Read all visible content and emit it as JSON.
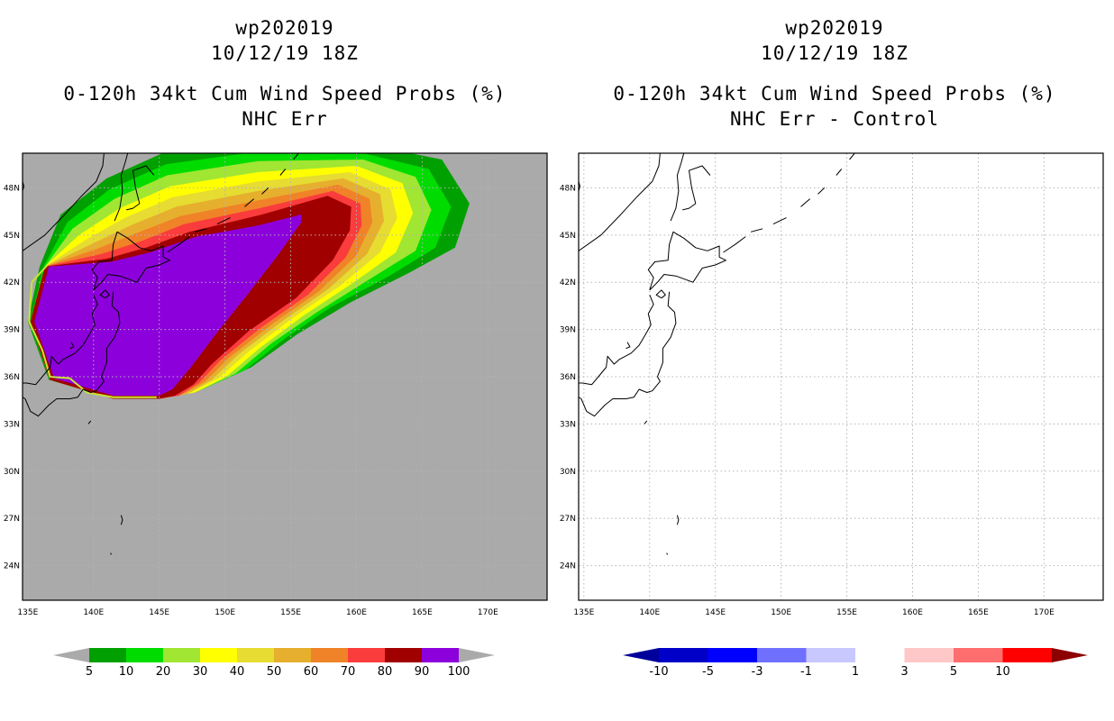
{
  "left": {
    "title1": "wp202019",
    "title2": "10/12/19 18Z",
    "title3": "0-120h 34kt Cum Wind Speed Probs (%)",
    "title4": "NHC Err",
    "background_color": "#aaaaaa",
    "colorbar": {
      "labels": [
        "5",
        "10",
        "20",
        "30",
        "40",
        "50",
        "60",
        "70",
        "80",
        "90",
        "100"
      ],
      "colors": [
        "#00a000",
        "#00dc00",
        "#a0e632",
        "#ffff00",
        "#e6dc32",
        "#e6af2d",
        "#f08228",
        "#fa3c3c",
        "#a00000",
        "#8c00dc"
      ],
      "under_color": "#aaaaaa",
      "over_color": "#aaaaaa"
    }
  },
  "right": {
    "title1": "wp202019",
    "title2": "10/12/19 18Z",
    "title3": "0-120h 34kt Cum Wind Speed Probs (%)",
    "title4": "NHC Err - Control",
    "background_color": "#ffffff",
    "colorbar": {
      "labels": [
        "-10",
        "-5",
        "-3",
        "-1",
        "1",
        "3",
        "5",
        "10"
      ],
      "colors": [
        "#0000c8",
        "#0000ff",
        "#7070ff",
        "#c8c8ff",
        "#ffffff",
        "#ffc8c8",
        "#ff6e6e",
        "#ff0000"
      ],
      "under_color": "#00009a",
      "over_color": "#8c0000"
    }
  },
  "axes": {
    "lon_labels": [
      "135E",
      "140E",
      "145E",
      "150E",
      "155E",
      "160E",
      "165E",
      "170E"
    ],
    "lat_labels": [
      "48N",
      "45N",
      "42N",
      "39N",
      "36N",
      "33N",
      "30N",
      "27N",
      "24N"
    ]
  }
}
